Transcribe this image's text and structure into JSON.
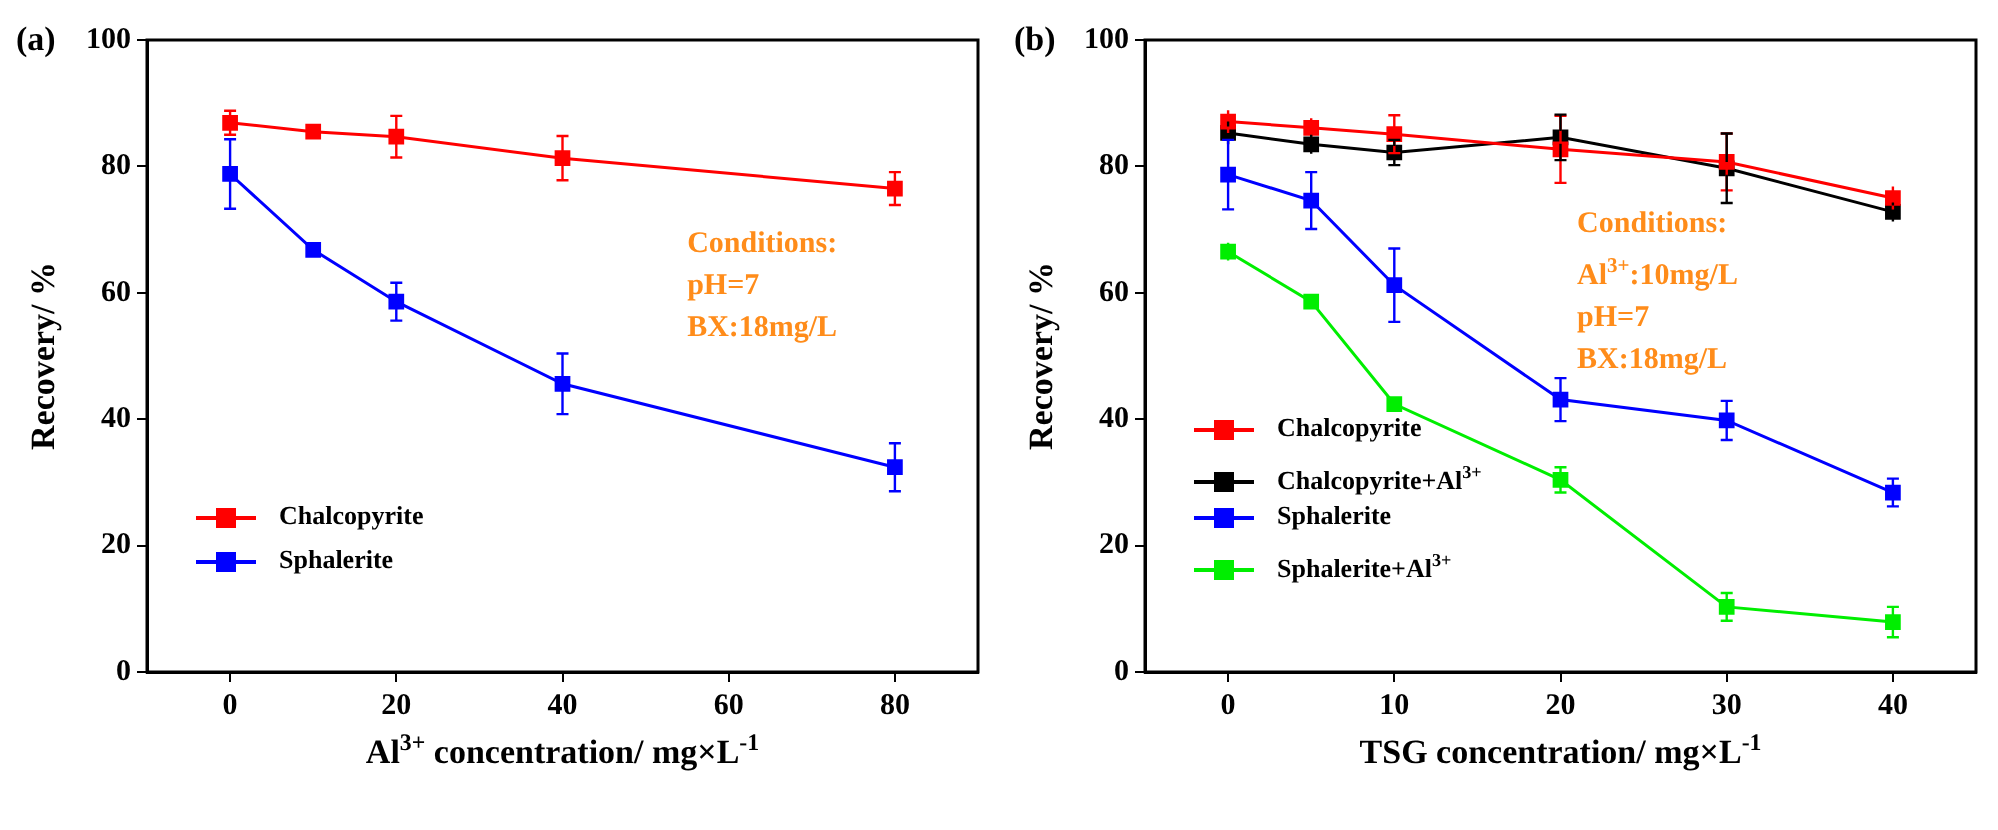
{
  "chart_data": [
    {
      "type": "line",
      "title": "(a)",
      "xlabel": "Al$^{3+}$ concentration/ mg×L$^{-1}$",
      "ylabel": "Recovery/ %",
      "x": [
        0,
        10,
        20,
        40,
        80
      ],
      "xlim": [
        -10,
        90
      ],
      "xticks": [
        0,
        20,
        40,
        60,
        80
      ],
      "ylim": [
        0,
        100
      ],
      "yticks": [
        0,
        20,
        40,
        60,
        80,
        100
      ],
      "grid": false,
      "legend": "bottom left",
      "marker": "square",
      "line_style": "solid",
      "annotations": [
        "Conditions:",
        "pH=7",
        "BX:18mg/L"
      ],
      "series": [
        {
          "name": "Chalcopyrite",
          "color": "#ff0000",
          "values": [
            86.9,
            85.5,
            84.7,
            81.3,
            76.5
          ],
          "errors": [
            1.9,
            null,
            3.3,
            3.5,
            2.6
          ]
        },
        {
          "name": "Sphalerite",
          "color": "#0000ff",
          "values": [
            78.8,
            66.8,
            58.6,
            45.6,
            32.4
          ],
          "errors": [
            5.5,
            null,
            3,
            4.8,
            3.8
          ]
        }
      ]
    },
    {
      "type": "line",
      "title": "(b)",
      "xlabel": "TSG concentration/ mg×L$^{-1}$",
      "ylabel": "Recovery/ %",
      "x": [
        0,
        5,
        10,
        20,
        30,
        40
      ],
      "xlim": [
        -5,
        45
      ],
      "xticks": [
        0,
        10,
        20,
        30,
        40
      ],
      "ylim": [
        0,
        100
      ],
      "yticks": [
        0,
        20,
        40,
        60,
        80,
        100
      ],
      "grid": false,
      "legend": "bottom left",
      "marker": "square",
      "line_style": "solid",
      "annotations": [
        "Conditions:",
        "Al$^{3+}$:10mg/L",
        "pH=7",
        "BX:18mg/L"
      ],
      "series": [
        {
          "name": "Chalcopyrite",
          "color": "#ff0000",
          "values": [
            87.1,
            86.1,
            85.1,
            82.7,
            80.7,
            75.0
          ],
          "errors": [
            1.8,
            1.5,
            3,
            5.3,
            4.5,
            1.8
          ]
        },
        {
          "name": "Chalcopyrite+Al$^{3+}$",
          "color": "#000000",
          "values": [
            85.3,
            83.5,
            82.2,
            84.6,
            79.7,
            72.8
          ],
          "errors": [
            1.8,
            1.5,
            2,
            3.6,
            5.5,
            1.5
          ]
        },
        {
          "name": "Sphalerite",
          "color": "#0000ff",
          "values": [
            78.7,
            74.6,
            61.2,
            43.1,
            39.8,
            28.4
          ],
          "errors": [
            5.5,
            4.5,
            5.8,
            3.4,
            3.1,
            2.2
          ]
        },
        {
          "name": "Sphalerite+Al$^{3+}$",
          "color": "#00ee00",
          "values": [
            66.5,
            58.6,
            42.4,
            30.4,
            10.3,
            7.9
          ],
          "errors": [
            1.4,
            null,
            null,
            2,
            2.2,
            2.4
          ]
        }
      ]
    }
  ]
}
